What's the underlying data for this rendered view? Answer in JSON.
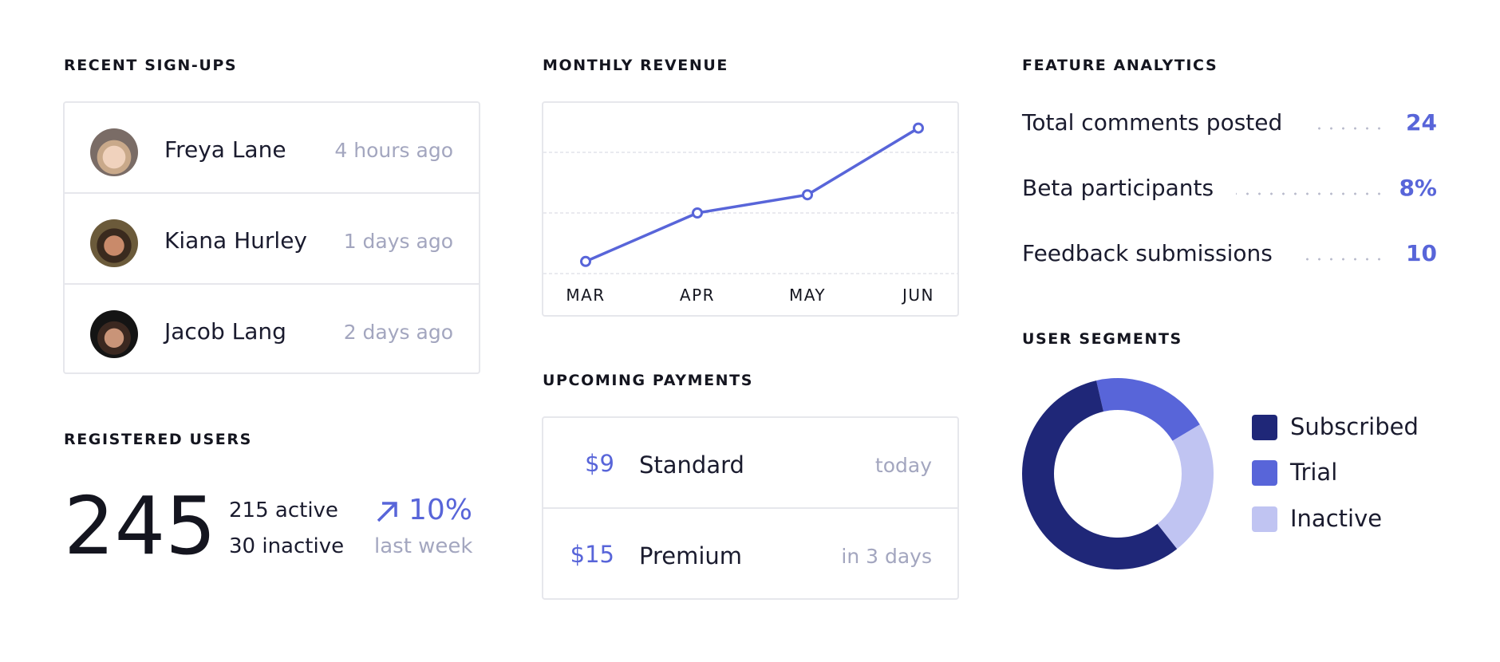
{
  "signups": {
    "title": "RECENT SIGN-UPS",
    "items": [
      {
        "name": "Freya Lane",
        "time": "4 hours ago"
      },
      {
        "name": "Kiana Hurley",
        "time": "1 days ago"
      },
      {
        "name": "Jacob Lang",
        "time": "2 days ago"
      }
    ]
  },
  "registered": {
    "title": "REGISTERED USERS",
    "total": "245",
    "active": "215 active",
    "inactive": "30 inactive",
    "change": "10%",
    "change_icon": "arrow-up-right-icon",
    "period": "last week"
  },
  "revenue": {
    "title": "MONTHLY REVENUE"
  },
  "payments": {
    "title": "UPCOMING PAYMENTS",
    "items": [
      {
        "amount": "$9",
        "plan": "Standard",
        "when": "today"
      },
      {
        "amount": "$15",
        "plan": "Premium",
        "when": "in 3 days"
      }
    ]
  },
  "features": {
    "title": "FEATURE ANALYTICS",
    "items": [
      {
        "label": "Total comments posted",
        "value": "24"
      },
      {
        "label": "Beta participants",
        "value": "8%"
      },
      {
        "label": "Feedback submissions",
        "value": "10"
      }
    ]
  },
  "segments": {
    "title": "USER SEGMENTS"
  },
  "colors": {
    "accent": "#5865d9",
    "navy": "#1f2778",
    "light": "#c0c4f2",
    "muted": "#a3a6bf"
  },
  "chart_data": [
    {
      "type": "line",
      "title": "MONTHLY REVENUE",
      "categories": [
        "MAR",
        "APR",
        "MAY",
        "JUN"
      ],
      "values": [
        2,
        10,
        13,
        24
      ],
      "grid": true,
      "color": "#5865d9"
    },
    {
      "type": "pie",
      "title": "USER SEGMENTS",
      "donut": true,
      "legend": "right",
      "slices": [
        {
          "label": "Subscribed",
          "value": 57,
          "color": "#1f2778"
        },
        {
          "label": "Trial",
          "value": 20,
          "color": "#5865d9"
        },
        {
          "label": "Inactive",
          "value": 23,
          "color": "#c0c4f2"
        }
      ]
    }
  ]
}
